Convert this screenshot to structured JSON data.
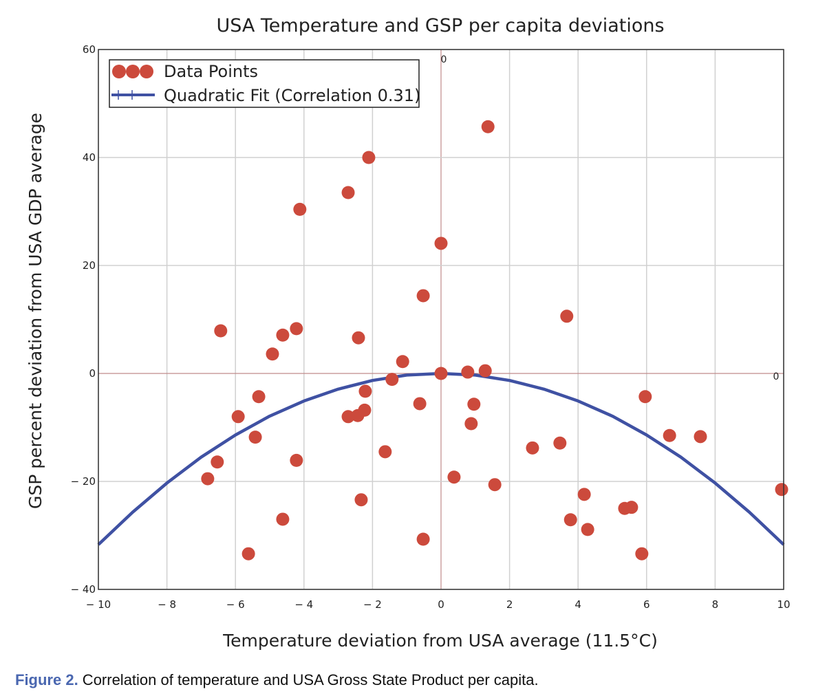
{
  "chart_data": {
    "type": "scatter",
    "title": "USA Temperature and GSP per capita deviations",
    "xlabel": "Temperature deviation from USA average (11.5°C)",
    "ylabel": "GSP percent deviation from USA GDP average",
    "xlim": [
      -10,
      10
    ],
    "ylim": [
      -40,
      60
    ],
    "x_ticks": [
      -10,
      -8,
      -6,
      -4,
      -2,
      0,
      2,
      4,
      6,
      8,
      10
    ],
    "x_tick_labels": [
      "− 10",
      "− 8",
      "− 6",
      "− 4",
      "− 2",
      "0",
      "2",
      "4",
      "6",
      "8",
      "10"
    ],
    "y_ticks": [
      60,
      40,
      20,
      0,
      -20,
      -40
    ],
    "y_tick_labels": [
      "60",
      "40",
      "20",
      "0",
      "− 20",
      "− 40"
    ],
    "axis_origin_labels": [
      "0",
      "0"
    ],
    "grid": true,
    "legend_position": "top-left",
    "colors": {
      "points": "#cc4a3c",
      "fit": "#3f51a3",
      "axes_origin": "#c08a8a",
      "grid": "#d0d0d0"
    },
    "series": [
      {
        "name": "Data Points",
        "kind": "scatter",
        "x": [
          1.37,
          -2.11,
          -2.71,
          -4.12,
          0.0,
          -0.52,
          3.67,
          -6.43,
          -4.22,
          -4.62,
          -2.41,
          -4.92,
          -1.12,
          0.0,
          0.78,
          1.29,
          -1.43,
          -2.21,
          -5.32,
          5.96,
          -0.62,
          0.96,
          -2.23,
          -5.92,
          -2.71,
          -2.43,
          0.88,
          -5.42,
          6.67,
          7.57,
          3.47,
          -1.63,
          2.67,
          -6.53,
          -4.22,
          -6.81,
          0.38,
          1.57,
          9.94,
          4.18,
          -2.33,
          5.36,
          5.56,
          -4.62,
          3.78,
          4.28,
          -0.52,
          -5.62,
          5.86
        ],
        "y": [
          45.7,
          40.0,
          33.5,
          30.4,
          24.1,
          14.4,
          10.6,
          7.9,
          8.3,
          7.1,
          6.6,
          3.6,
          2.2,
          0.0,
          0.25,
          0.5,
          -1.1,
          -3.3,
          -4.3,
          -4.3,
          -5.6,
          -5.7,
          -6.8,
          -8.0,
          -8.0,
          -7.8,
          -9.3,
          -11.8,
          -11.5,
          -11.7,
          -12.9,
          -14.5,
          -13.8,
          -16.4,
          -16.1,
          -19.5,
          -19.2,
          -20.6,
          -21.5,
          -22.4,
          -23.4,
          -25.0,
          -24.8,
          -27.0,
          -27.1,
          -28.9,
          -30.7,
          -33.4,
          -33.4
        ]
      },
      {
        "name": "Quadratic Fit (Correlation 0.31)",
        "kind": "line",
        "x": [
          -10,
          -9,
          -8,
          -7,
          -6,
          -5,
          -4,
          -3,
          -2,
          -1,
          0,
          1,
          2,
          3,
          4,
          5,
          6,
          7,
          8,
          9,
          10
        ],
        "y": [
          -31.7,
          -25.7,
          -20.3,
          -15.5,
          -11.4,
          -7.9,
          -5.1,
          -2.9,
          -1.3,
          -0.3,
          0,
          -0.3,
          -1.3,
          -2.9,
          -5.1,
          -7.9,
          -11.4,
          -15.5,
          -20.3,
          -25.7,
          -31.7
        ]
      }
    ]
  },
  "caption": {
    "label": "Figure 2.",
    "text": " Correlation of temperature and USA Gross State Product per capita."
  }
}
